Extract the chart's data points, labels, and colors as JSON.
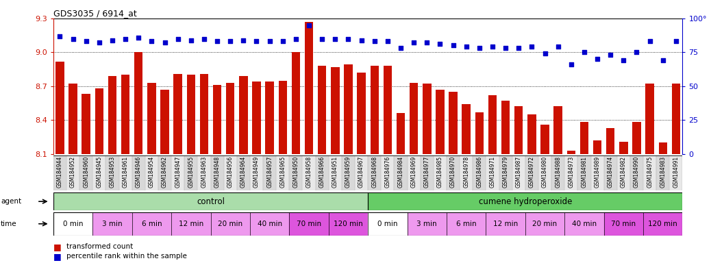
{
  "title": "GDS3035 / 6914_at",
  "samples": [
    "GSM184944",
    "GSM184952",
    "GSM184960",
    "GSM184945",
    "GSM184953",
    "GSM184961",
    "GSM184946",
    "GSM184954",
    "GSM184962",
    "GSM184947",
    "GSM184955",
    "GSM184963",
    "GSM184948",
    "GSM184956",
    "GSM184964",
    "GSM184949",
    "GSM184957",
    "GSM184965",
    "GSM184950",
    "GSM184958",
    "GSM184966",
    "GSM184951",
    "GSM184959",
    "GSM184967",
    "GSM184968",
    "GSM184976",
    "GSM184984",
    "GSM184969",
    "GSM184977",
    "GSM184985",
    "GSM184970",
    "GSM184978",
    "GSM184986",
    "GSM184971",
    "GSM184979",
    "GSM184987",
    "GSM184972",
    "GSM184980",
    "GSM184988",
    "GSM184973",
    "GSM184981",
    "GSM184989",
    "GSM184974",
    "GSM184982",
    "GSM184990",
    "GSM184975",
    "GSM184983",
    "GSM184991"
  ],
  "bar_values": [
    8.92,
    8.72,
    8.63,
    8.68,
    8.79,
    8.8,
    9.0,
    8.73,
    8.67,
    8.81,
    8.8,
    8.81,
    8.71,
    8.73,
    8.79,
    8.74,
    8.74,
    8.75,
    9.0,
    9.27,
    8.88,
    8.87,
    8.89,
    8.82,
    8.88,
    8.88,
    8.46,
    8.73,
    8.72,
    8.67,
    8.65,
    8.54,
    8.47,
    8.62,
    8.57,
    8.52,
    8.45,
    8.36,
    8.52,
    8.13,
    8.38,
    8.22,
    8.33,
    8.21,
    8.38,
    8.72,
    8.2,
    8.72
  ],
  "percentile_values": [
    87,
    85,
    83,
    82,
    84,
    85,
    86,
    83,
    82,
    85,
    84,
    85,
    83,
    83,
    84,
    83,
    83,
    83,
    85,
    95,
    85,
    85,
    85,
    84,
    83,
    83,
    78,
    82,
    82,
    81,
    80,
    79,
    78,
    79,
    78,
    78,
    79,
    74,
    79,
    66,
    75,
    70,
    73,
    69,
    75,
    83,
    69,
    83
  ],
  "ylim_left": [
    8.1,
    9.3
  ],
  "ylim_right": [
    0,
    100
  ],
  "yticks_left": [
    8.1,
    8.4,
    8.7,
    9.0,
    9.3
  ],
  "yticks_right": [
    0,
    25,
    50,
    75,
    100
  ],
  "bar_color": "#cc1100",
  "dot_color": "#0000cc",
  "bar_bottom": 8.1,
  "control_color": "#aaddaa",
  "treatment_color": "#66cc66",
  "control_label": "control",
  "treatment_label": "cumene hydroperoxide",
  "n_control": 24,
  "n_treatment": 24,
  "time_labels": [
    "0 min",
    "3 min",
    "6 min",
    "12 min",
    "20 min",
    "40 min",
    "70 min",
    "120 min"
  ],
  "time_n": [
    3,
    3,
    3,
    3,
    3,
    3,
    3,
    3
  ],
  "time_colors_light": "#ee99ee",
  "time_colors_dark": "#dd55dd",
  "time_colors_white": "#ffffff",
  "legend_bar_label": "transformed count",
  "legend_dot_label": "percentile rank within the sample"
}
